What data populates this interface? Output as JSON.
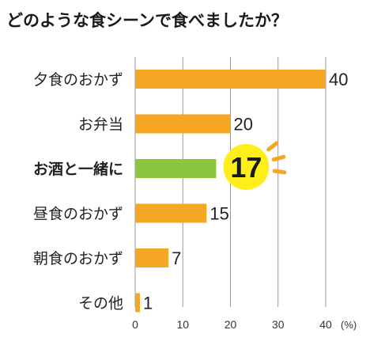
{
  "chart_data": {
    "type": "bar",
    "orientation": "horizontal",
    "title": "どのような食シーンで食べましたか？",
    "unit": "(%)",
    "categories": [
      "夕食のおかず",
      "お弁当",
      "お酒と一緒に",
      "昼食のおかず",
      "朝食のおかず",
      "その他"
    ],
    "values": [
      40,
      20,
      17,
      15,
      7,
      1
    ],
    "highlight_index": 2,
    "xlim": [
      0,
      40
    ],
    "xticks": [
      0,
      10,
      20,
      30,
      40
    ],
    "grid": true,
    "colors": {
      "bar": "#F5A623",
      "highlight_bar": "#8CC63F",
      "highlight_circle": "#FFEE1A",
      "rays": "#F5A623",
      "grid": "#999999"
    }
  }
}
